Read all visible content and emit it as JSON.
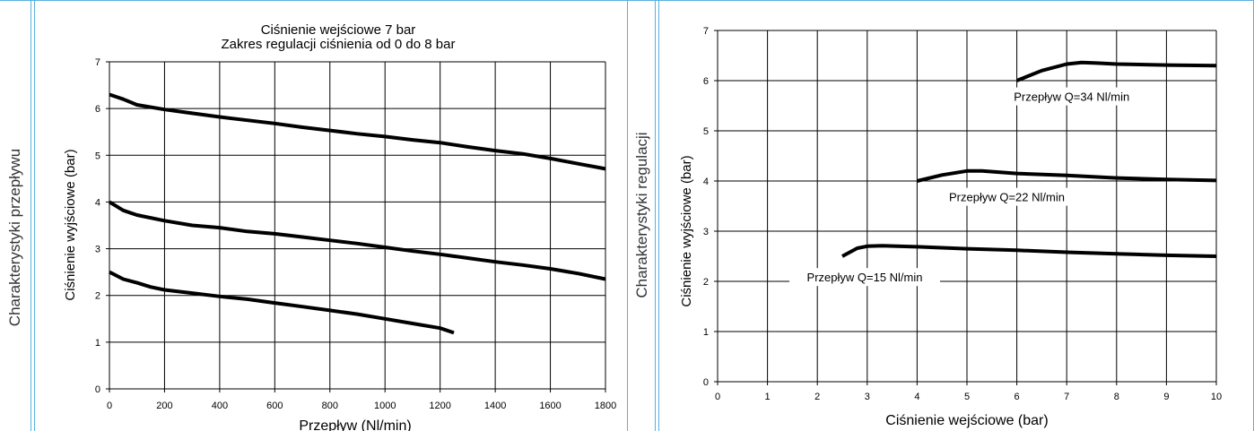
{
  "sections": {
    "left_label": "Charakterystyki przepływu",
    "right_label": "Charakterystyki regulacji"
  },
  "colors": {
    "frame": "#5ab0e0",
    "grid": "#000000",
    "series": "#000000"
  },
  "chart_data": [
    {
      "type": "line",
      "title": "Ciśnienie wejściowe 7 bar",
      "subtitle": "Zakres regulacji ciśnienia od 0 do 8 bar",
      "xlabel": "Przepływ (Nl/min)",
      "ylabel": "Ciśnienie wyjściowe (bar)",
      "xlim": [
        0,
        1800
      ],
      "ylim": [
        0,
        7
      ],
      "xticks": [
        0,
        200,
        400,
        600,
        800,
        1000,
        1200,
        1400,
        1600,
        1800
      ],
      "yticks": [
        0,
        1,
        2,
        3,
        4,
        5,
        6,
        7
      ],
      "grid": true,
      "series": [
        {
          "x": [
            0,
            50,
            100,
            200,
            300,
            400,
            500,
            600,
            700,
            800,
            900,
            1000,
            1100,
            1200,
            1300,
            1400,
            1500,
            1600,
            1700,
            1800
          ],
          "y": [
            6.3,
            6.2,
            6.08,
            5.98,
            5.9,
            5.82,
            5.75,
            5.68,
            5.6,
            5.53,
            5.46,
            5.4,
            5.33,
            5.27,
            5.18,
            5.1,
            5.03,
            4.93,
            4.82,
            4.71
          ]
        },
        {
          "x": [
            0,
            50,
            100,
            200,
            300,
            400,
            500,
            600,
            700,
            800,
            900,
            1000,
            1100,
            1200,
            1300,
            1400,
            1500,
            1600,
            1700,
            1800
          ],
          "y": [
            4.0,
            3.82,
            3.72,
            3.6,
            3.5,
            3.45,
            3.37,
            3.32,
            3.25,
            3.18,
            3.11,
            3.03,
            2.95,
            2.88,
            2.8,
            2.72,
            2.65,
            2.57,
            2.47,
            2.35
          ]
        },
        {
          "x": [
            0,
            50,
            100,
            150,
            200,
            300,
            400,
            500,
            600,
            700,
            800,
            900,
            1000,
            1100,
            1200,
            1250
          ],
          "y": [
            2.5,
            2.35,
            2.27,
            2.18,
            2.12,
            2.05,
            1.98,
            1.92,
            1.84,
            1.76,
            1.68,
            1.6,
            1.5,
            1.4,
            1.3,
            1.2
          ]
        }
      ]
    },
    {
      "type": "line",
      "xlabel": "Ciśnienie wejściowe (bar)",
      "ylabel": "Ciśnienie wyjściowe  (bar)",
      "xlim": [
        0,
        10
      ],
      "ylim": [
        0,
        7
      ],
      "xticks": [
        0,
        1,
        2,
        3,
        4,
        5,
        6,
        7,
        8,
        9,
        10
      ],
      "yticks": [
        0,
        1,
        2,
        3,
        4,
        5,
        6,
        7
      ],
      "grid": true,
      "series": [
        {
          "name": "Przepływ Q=34 Nl/min",
          "x": [
            6,
            6.5,
            7,
            7.3,
            7.6,
            8,
            9,
            10
          ],
          "y": [
            6.0,
            6.2,
            6.33,
            6.36,
            6.35,
            6.33,
            6.31,
            6.3
          ]
        },
        {
          "name": "Przepływ Q=22 Nl/min",
          "x": [
            4,
            4.5,
            5,
            5.3,
            6,
            7,
            8,
            9,
            10
          ],
          "y": [
            4.0,
            4.12,
            4.2,
            4.2,
            4.15,
            4.11,
            4.06,
            4.03,
            4.01
          ]
        },
        {
          "name": "Przepływ Q=15 Nl/min",
          "x": [
            2.5,
            2.8,
            3.0,
            3.3,
            3.6,
            4,
            5,
            6,
            7,
            8,
            9,
            10
          ],
          "y": [
            2.5,
            2.66,
            2.7,
            2.71,
            2.7,
            2.69,
            2.65,
            2.62,
            2.58,
            2.55,
            2.52,
            2.5
          ]
        }
      ]
    }
  ]
}
